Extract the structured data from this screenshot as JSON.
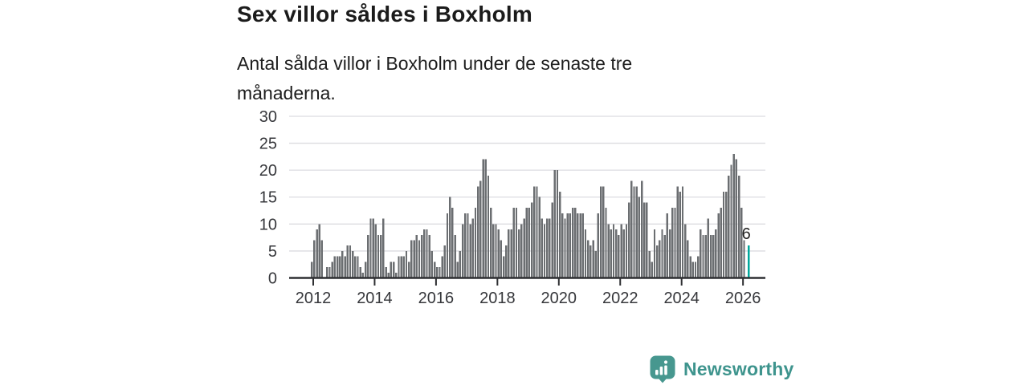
{
  "header": {
    "title": "Sex villor såldes i Boxholm",
    "subtitle": "Antal sålda villor i Boxholm under de senaste tre månaderna."
  },
  "chart_data": {
    "type": "bar",
    "title": "Sex villor såldes i Boxholm",
    "subtitle": "Antal sålda villor i Boxholm under de senaste tre månaderna.",
    "x_monthly_start": "2011-12",
    "x_ticks": [
      "2012",
      "2014",
      "2016",
      "2018",
      "2020",
      "2022",
      "2024",
      "2026"
    ],
    "y_ticks": [
      0,
      5,
      10,
      15,
      20,
      25,
      30
    ],
    "ylim": [
      0,
      30
    ],
    "grid": true,
    "bar_color": "#6b6e71",
    "values": [
      3,
      7,
      9,
      10,
      7,
      0,
      2,
      2,
      3,
      4,
      4,
      4,
      5,
      4,
      6,
      6,
      5,
      4,
      4,
      2,
      1,
      3,
      8,
      11,
      11,
      10,
      8,
      8,
      11,
      2,
      1,
      3,
      3,
      1,
      4,
      4,
      4,
      5,
      3,
      7,
      7,
      8,
      7,
      8,
      9,
      9,
      8,
      5,
      3,
      2,
      2,
      4,
      6,
      12,
      15,
      13,
      8,
      3,
      5,
      10,
      12,
      12,
      10,
      11,
      13,
      17,
      18,
      22,
      22,
      19,
      13,
      10,
      10,
      9,
      7,
      4,
      6,
      9,
      9,
      13,
      13,
      9,
      10,
      11,
      13,
      13,
      14,
      17,
      17,
      15,
      11,
      10,
      11,
      11,
      14,
      20,
      20,
      16,
      12,
      11,
      12,
      12,
      13,
      13,
      12,
      12,
      12,
      9,
      7,
      6,
      7,
      5,
      12,
      17,
      17,
      13,
      10,
      9,
      10,
      9,
      8,
      10,
      9,
      10,
      14,
      18,
      17,
      17,
      15,
      18,
      14,
      14,
      5,
      3,
      9,
      6,
      7,
      9,
      8,
      12,
      9,
      13,
      13,
      17,
      16,
      17,
      10,
      7,
      4,
      3,
      3,
      4,
      9,
      8,
      8,
      11,
      8,
      8,
      9,
      12,
      13,
      16,
      16,
      19,
      21,
      23,
      22,
      19,
      13,
      7,
      6
    ],
    "highlight": {
      "position": "last",
      "value": 6,
      "label": "6",
      "color": "#00a79c"
    }
  },
  "footer": {
    "brand": "Newsworthy",
    "brand_color": "#3e948d",
    "logo_color": "#47978f"
  },
  "colors": {
    "axis": "#2e2f32",
    "gridline": "#dcdce0",
    "tick_label": "#36373b"
  }
}
